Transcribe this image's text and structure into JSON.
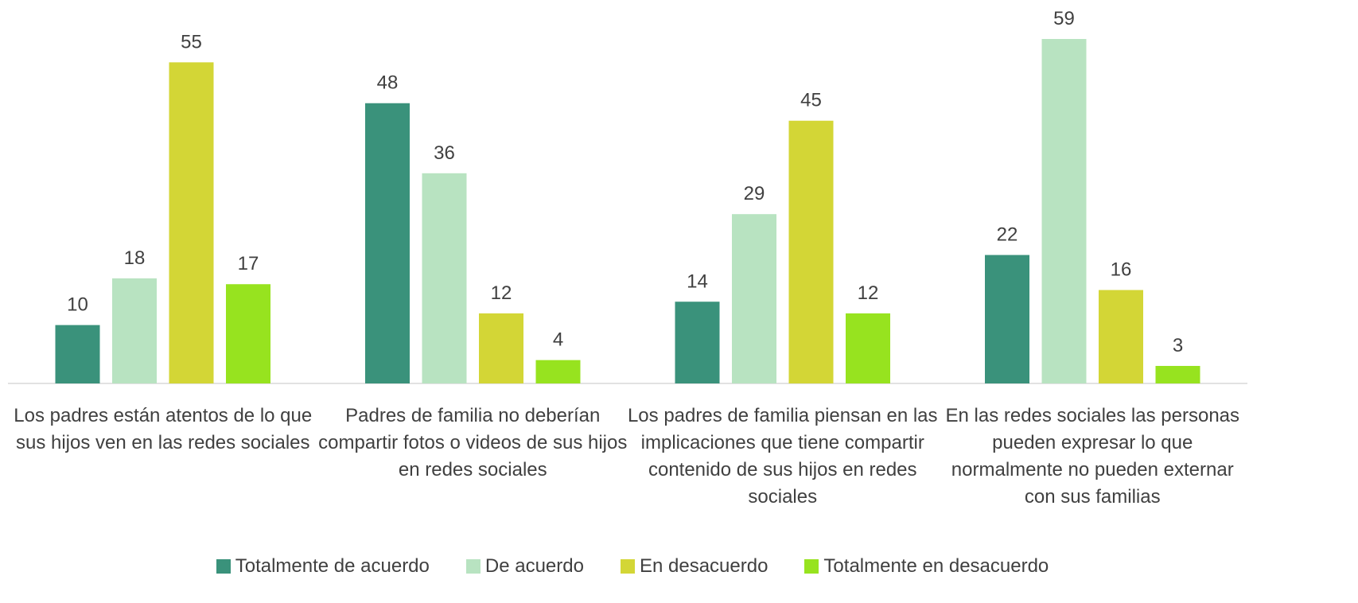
{
  "chart_data": {
    "type": "bar",
    "categories": [
      "Los padres están atentos de lo que sus hijos ven en las redes sociales",
      "Padres de familia no deberían compartir fotos o videos de sus hijos en redes sociales",
      "Los padres de familia piensan en las implicaciones que tiene compartir contenido de sus hijos en redes sociales",
      "En las redes sociales las personas pueden expresar lo que normalmente no pueden externar con sus familias"
    ],
    "series": [
      {
        "name": "Totalmente de acuerdo",
        "color": "#3a927b",
        "values": [
          10,
          48,
          14,
          22
        ]
      },
      {
        "name": "De acuerdo",
        "color": "#b8e3c1",
        "values": [
          18,
          36,
          29,
          59
        ]
      },
      {
        "name": "En desacuerdo",
        "color": "#d3d636",
        "values": [
          55,
          12,
          45,
          16
        ]
      },
      {
        "name": "Totalmente en desacuerdo",
        "color": "#97e31f",
        "values": [
          17,
          4,
          12,
          3
        ]
      }
    ],
    "legend": "bottom"
  }
}
